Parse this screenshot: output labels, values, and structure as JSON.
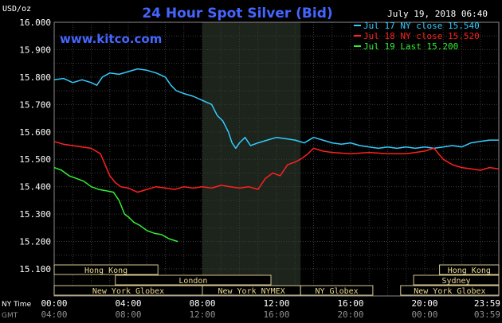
{
  "chart_data": {
    "type": "line",
    "title": "24 Hour Spot Silver (Bid)",
    "timestamp": "July 19, 2018 06:40",
    "website": "www.kitco.com",
    "ylabel": "USD/oz",
    "ylim": [
      15.1,
      16.0
    ],
    "yticks": [
      "15.100",
      "15.200",
      "15.300",
      "15.400",
      "15.500",
      "15.600",
      "15.700",
      "15.800",
      "15.900",
      "16.000"
    ],
    "xlim": [
      0,
      24
    ],
    "grid": true,
    "shaded_interval": [
      8.0,
      13.3
    ],
    "xaxis_rows": [
      {
        "label": "NY Time",
        "ticks": [
          "00:00",
          "04:00",
          "08:00",
          "12:00",
          "16:00",
          "20:00",
          "23:59"
        ]
      },
      {
        "label": "GMT",
        "ticks": [
          "04:00",
          "08:00",
          "12:00",
          "16:00",
          "20:00",
          "00:00",
          "03:59"
        ]
      }
    ],
    "legend_position": "top-right",
    "sessions": [
      {
        "name": "Hong Kong",
        "start": 0.0,
        "end": 5.6,
        "row": 0
      },
      {
        "name": "Hong Kong",
        "start": 20.8,
        "end": 24.0,
        "row": 0
      },
      {
        "name": "London",
        "start": 3.3,
        "end": 11.7,
        "row": 1
      },
      {
        "name": "Sydney",
        "start": 19.4,
        "end": 24.0,
        "row": 1
      },
      {
        "name": "New York Globex",
        "start": 0.0,
        "end": 8.0,
        "row": 2
      },
      {
        "name": "New York NYMEX",
        "start": 8.0,
        "end": 13.3,
        "row": 2
      },
      {
        "name": "NY Globex",
        "start": 13.3,
        "end": 17.2,
        "row": 2
      },
      {
        "name": "New York Globex",
        "start": 18.7,
        "end": 24.0,
        "row": 2
      }
    ],
    "series": [
      {
        "name": "Jul 17 NY close 15.540",
        "color": "#33ccff",
        "x": [
          0,
          0.5,
          1,
          1.5,
          2,
          2.3,
          2.6,
          3,
          3.5,
          4,
          4.5,
          5,
          5.5,
          6,
          6.3,
          6.6,
          7,
          7.5,
          8,
          8.5,
          8.8,
          9.1,
          9.4,
          9.6,
          9.8,
          10,
          10.3,
          10.6,
          11,
          11.5,
          12,
          12.5,
          13,
          13.5,
          14,
          14.5,
          15,
          15.5,
          16,
          16.5,
          17,
          17.5,
          18,
          18.5,
          19,
          19.5,
          20,
          20.5,
          21,
          21.5,
          22,
          22.5,
          23,
          23.5,
          23.99
        ],
        "values": [
          15.79,
          15.795,
          15.78,
          15.79,
          15.78,
          15.77,
          15.8,
          15.815,
          15.81,
          15.82,
          15.83,
          15.825,
          15.815,
          15.8,
          15.77,
          15.75,
          15.74,
          15.73,
          15.715,
          15.7,
          15.66,
          15.64,
          15.6,
          15.56,
          15.54,
          15.56,
          15.58,
          15.55,
          15.56,
          15.57,
          15.58,
          15.575,
          15.57,
          15.56,
          15.58,
          15.57,
          15.56,
          15.555,
          15.56,
          15.55,
          15.545,
          15.54,
          15.545,
          15.54,
          15.545,
          15.54,
          15.545,
          15.54,
          15.545,
          15.55,
          15.545,
          15.56,
          15.565,
          15.57,
          15.57
        ]
      },
      {
        "name": "Jul 18 NY close 15.520",
        "color": "#ff2020",
        "x": [
          0,
          0.5,
          1,
          1.5,
          2,
          2.5,
          3,
          3.3,
          3.6,
          4,
          4.5,
          5,
          5.5,
          6,
          6.5,
          7,
          7.5,
          8,
          8.5,
          9,
          9.5,
          10,
          10.5,
          11,
          11.4,
          11.8,
          12.2,
          12.6,
          13,
          13.3,
          13.7,
          14,
          14.5,
          15,
          16,
          17,
          18,
          19,
          19.5,
          20,
          20.5,
          21,
          21.5,
          22,
          22.5,
          23,
          23.5,
          23.99
        ],
        "values": [
          15.565,
          15.555,
          15.55,
          15.545,
          15.54,
          15.52,
          15.44,
          15.415,
          15.4,
          15.395,
          15.38,
          15.39,
          15.4,
          15.395,
          15.39,
          15.4,
          15.395,
          15.4,
          15.395,
          15.405,
          15.4,
          15.395,
          15.4,
          15.39,
          15.43,
          15.45,
          15.44,
          15.48,
          15.49,
          15.5,
          15.52,
          15.54,
          15.53,
          15.525,
          15.52,
          15.525,
          15.52,
          15.52,
          15.525,
          15.53,
          15.54,
          15.5,
          15.48,
          15.47,
          15.465,
          15.46,
          15.47,
          15.465
        ]
      },
      {
        "name": "Jul 19 Last 15.200",
        "color": "#33ee33",
        "x": [
          0,
          0.4,
          0.8,
          1.2,
          1.6,
          2,
          2.4,
          2.8,
          3.2,
          3.5,
          3.8,
          4,
          4.3,
          4.6,
          5,
          5.4,
          5.8,
          6.2,
          6.67
        ],
        "values": [
          15.47,
          15.46,
          15.44,
          15.43,
          15.42,
          15.4,
          15.39,
          15.385,
          15.38,
          15.35,
          15.3,
          15.29,
          15.27,
          15.26,
          15.24,
          15.23,
          15.225,
          15.21,
          15.2
        ]
      }
    ]
  }
}
